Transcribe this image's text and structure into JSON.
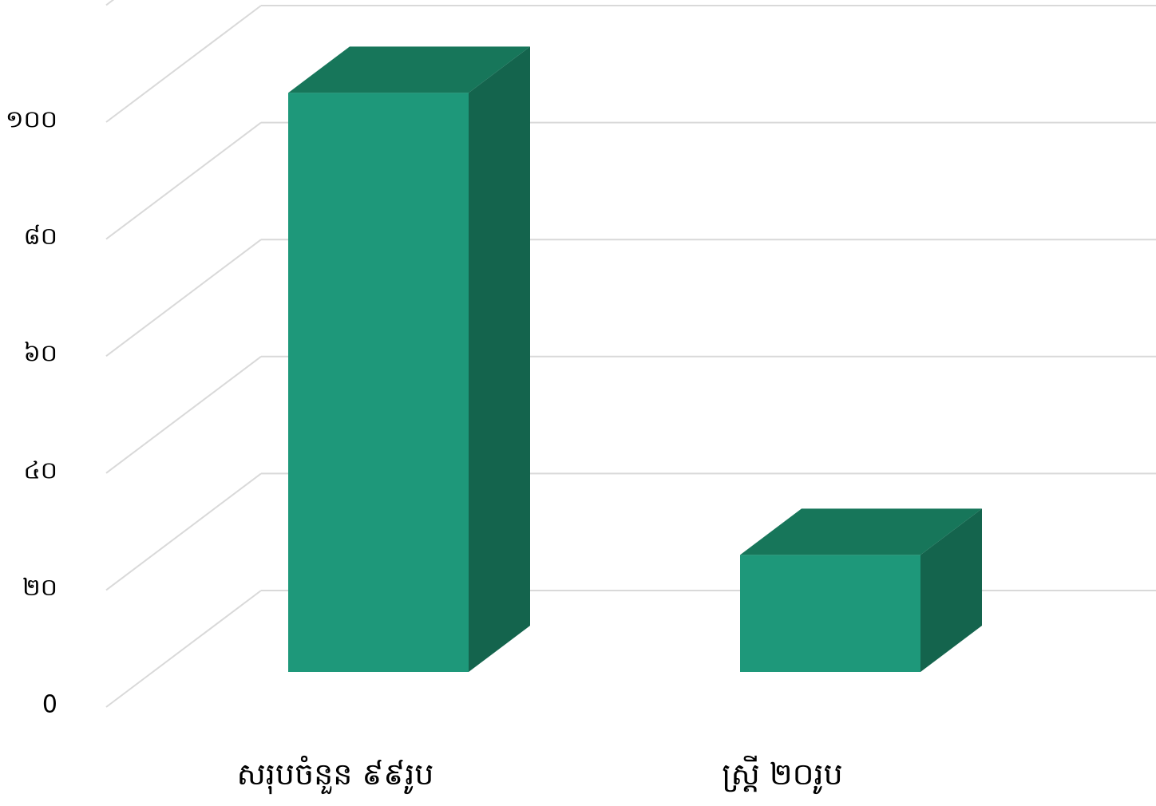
{
  "chart_data": {
    "type": "bar",
    "style": "3d-column",
    "categories": [
      "សរុបចំនួន ៩៩រូប",
      "ស្ត្រី ២០រូប"
    ],
    "values": [
      99,
      20
    ],
    "ylim": [
      0,
      120
    ],
    "yticks": [
      0,
      20,
      40,
      60,
      80,
      100
    ],
    "ytick_labels": [
      "0",
      "២០",
      "៤០",
      "៦០",
      "៨០",
      "១០០"
    ],
    "title": "",
    "xlabel": "",
    "ylabel": "",
    "grid": true,
    "legend": "none",
    "colors": {
      "bar_front": "#1e987a",
      "bar_top": "#17765a",
      "bar_side": "#14644d",
      "grid": "#d9d9d9"
    }
  }
}
